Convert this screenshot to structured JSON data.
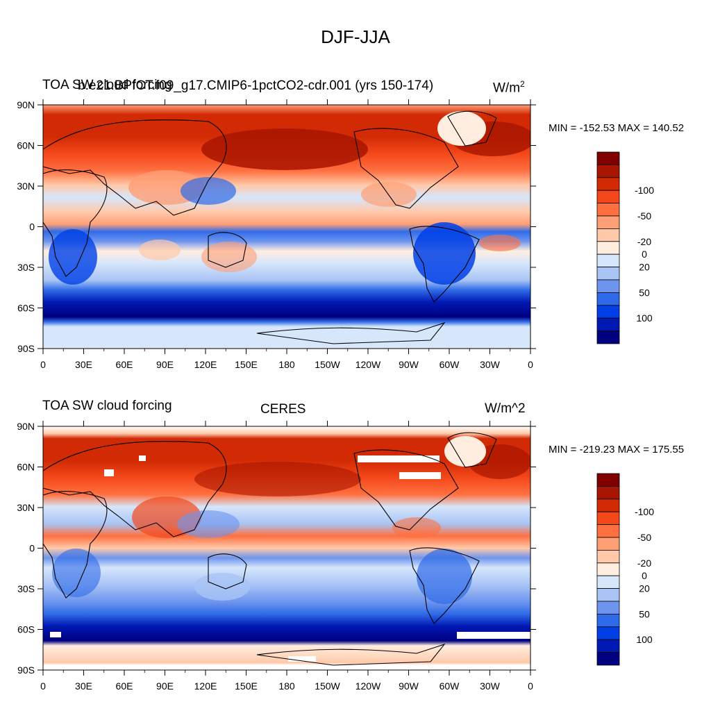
{
  "figure": {
    "title": "DJF-JJA"
  },
  "panels": [
    {
      "left_title": "TOA SW cloud forcing",
      "center_title": "b.e21.BPfCT.f09_g17.CMIP6-1pctCO2-cdr.001 (yrs 150-174)",
      "right_title": "W/m",
      "right_title_sup": "2",
      "minmax": "MIN = -152.53 MAX = 140.52"
    },
    {
      "left_title": "TOA SW cloud forcing",
      "center_title": "CERES",
      "right_title": "W/m^2",
      "right_title_sup": "",
      "minmax": "MIN = -219.23 MAX = 175.55"
    }
  ],
  "axes": {
    "lat_labels": [
      "90N",
      "60N",
      "30N",
      "0",
      "30S",
      "60S",
      "90S"
    ],
    "lon_labels": [
      "0",
      "30E",
      "60E",
      "90E",
      "120E",
      "150E",
      "180",
      "150W",
      "120W",
      "90W",
      "60W",
      "30W",
      "0"
    ]
  },
  "colorbar": {
    "colors": [
      "#000080",
      "#0019b3",
      "#0040e6",
      "#2f6be8",
      "#6e95ee",
      "#a9c4f5",
      "#d6e6fb",
      "#ffeee0",
      "#ffc9aa",
      "#ff9f75",
      "#ff7040",
      "#f4481a",
      "#d12a05",
      "#a81500",
      "#800000"
    ],
    "labels": [
      "-100",
      "-50",
      "-20",
      "0",
      "20",
      "50",
      "100"
    ]
  }
}
